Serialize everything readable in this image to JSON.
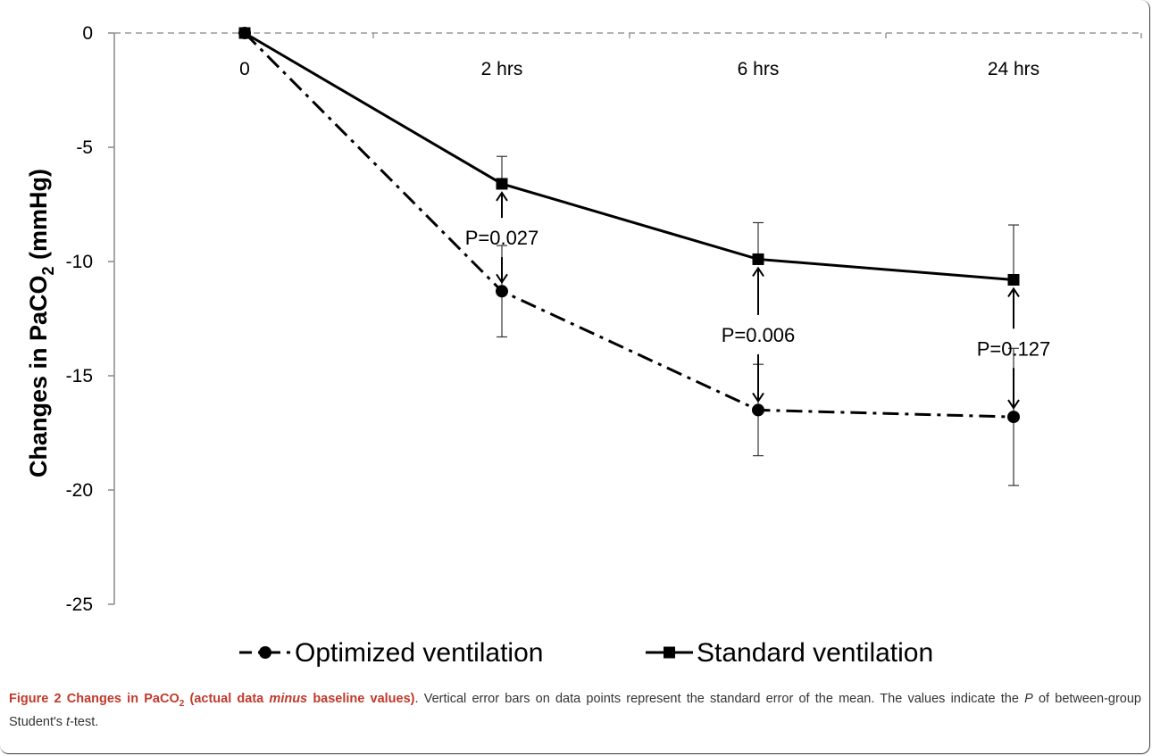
{
  "chart_data": {
    "type": "line",
    "categories": [
      "0",
      "2 hrs",
      "6 hrs",
      "24 hrs"
    ],
    "ylabel": "Changes in PaCO",
    "ylabel_sub": "2",
    "ylabel_unit": " (mmHg)",
    "ylim": [
      -25,
      0
    ],
    "yticks": [
      0,
      -5,
      -10,
      -15,
      -20,
      -25
    ],
    "grid": false,
    "legend_position": "bottom",
    "series": [
      {
        "name": "Optimized ventilation",
        "marker": "circle",
        "line_style": "dash-dot",
        "values": [
          0,
          -11.3,
          -16.5,
          -16.8
        ],
        "error_upper": [
          0,
          -9.3,
          -14.5,
          -13.8
        ],
        "error_lower": [
          0,
          -13.3,
          -18.5,
          -19.8
        ]
      },
      {
        "name": "Standard ventilation",
        "marker": "square",
        "line_style": "solid",
        "values": [
          0,
          -6.6,
          -9.9,
          -10.8
        ],
        "error_upper": [
          0,
          -5.4,
          -8.3,
          -8.4
        ],
        "error_lower": [
          0,
          -6.6,
          -9.9,
          -10.8
        ]
      }
    ],
    "annotations": [
      {
        "category": "2 hrs",
        "text": "P=0.027"
      },
      {
        "category": "6 hrs",
        "text": "P=0.006"
      },
      {
        "category": "24 hrs",
        "text": "P=0.127"
      }
    ]
  },
  "caption": {
    "label": "Figure 2",
    "title_a": "Changes in PaCO",
    "title_sub": "2",
    "title_b": " (actual data ",
    "title_minus": "minus",
    "title_c": " baseline values)",
    "body_a": ". Vertical error bars on data points represent the standard error of the mean. The values indicate the ",
    "body_p": "P",
    "body_b": " of between-group Student's ",
    "body_t": "t",
    "body_c": "-test."
  }
}
